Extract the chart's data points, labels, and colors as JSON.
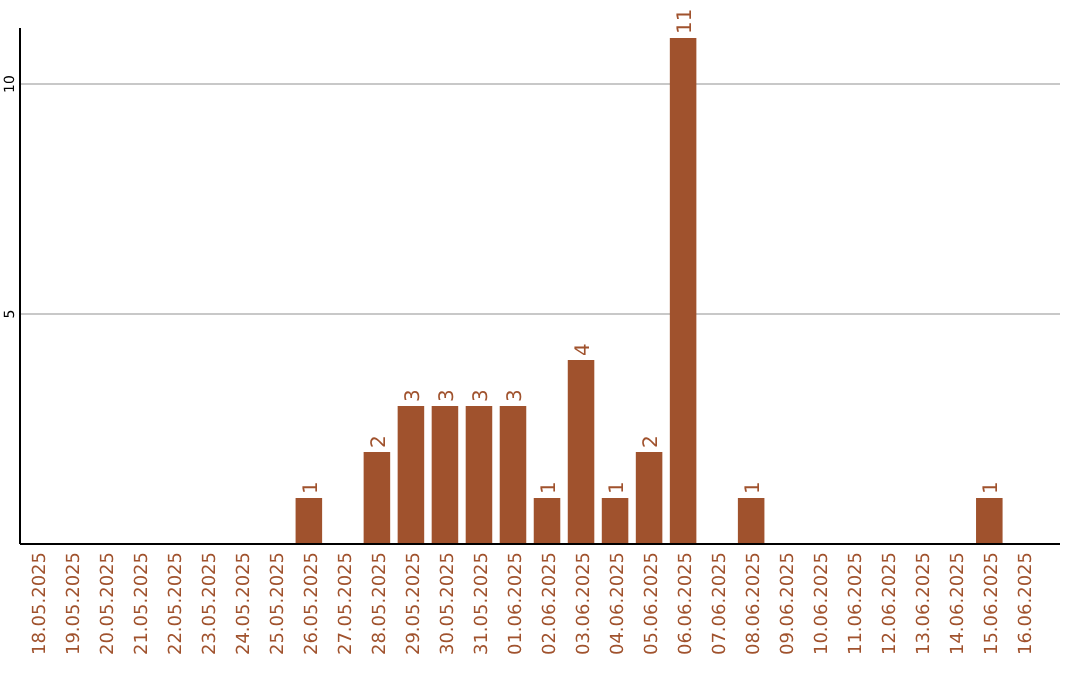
{
  "chart_data": {
    "type": "bar",
    "categories": [
      "18.05.2025",
      "19.05.2025",
      "20.05.2025",
      "21.05.2025",
      "22.05.2025",
      "23.05.2025",
      "24.05.2025",
      "25.05.2025",
      "26.05.2025",
      "27.05.2025",
      "28.05.2025",
      "29.05.2025",
      "30.05.2025",
      "31.05.2025",
      "01.06.2025",
      "02.06.2025",
      "03.06.2025",
      "04.06.2025",
      "05.06.2025",
      "06.06.2025",
      "07.06.2025",
      "08.06.2025",
      "09.06.2025",
      "10.06.2025",
      "11.06.2025",
      "12.06.2025",
      "13.06.2025",
      "14.06.2025",
      "15.06.2025",
      "16.06.2025"
    ],
    "values": [
      0,
      0,
      0,
      0,
      0,
      0,
      0,
      0,
      1,
      0,
      2,
      3,
      3,
      3,
      3,
      1,
      4,
      1,
      2,
      11,
      0,
      1,
      0,
      0,
      0,
      0,
      0,
      0,
      1,
      0
    ],
    "value_labels": [
      null,
      null,
      null,
      null,
      null,
      null,
      null,
      null,
      "1",
      null,
      "2",
      "3",
      "3",
      "3",
      "3",
      "1",
      "4",
      "1",
      "2",
      "11",
      null,
      "1",
      null,
      null,
      null,
      null,
      null,
      null,
      "1",
      null
    ],
    "color": "#a0522d",
    "ylim": [
      0,
      11
    ],
    "yticks": [
      5,
      10
    ],
    "grid": "y"
  }
}
